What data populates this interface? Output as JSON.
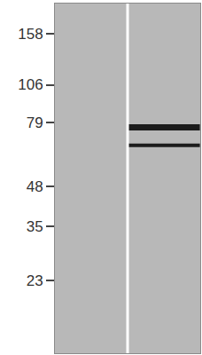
{
  "chart_data": {
    "type": "scatter",
    "categories": [
      null,
      null
    ],
    "series": [
      {
        "values": [
          null,
          76
        ]
      },
      {
        "values": [
          null,
          66
        ]
      }
    ],
    "color": "#1c1c1c",
    "marker": "band",
    "log": "y",
    "ylim": [
      13,
      200
    ],
    "yticks": [
      23,
      35,
      48,
      79,
      106,
      158
    ],
    "tick_labels": "y",
    "grid": false
  }
}
